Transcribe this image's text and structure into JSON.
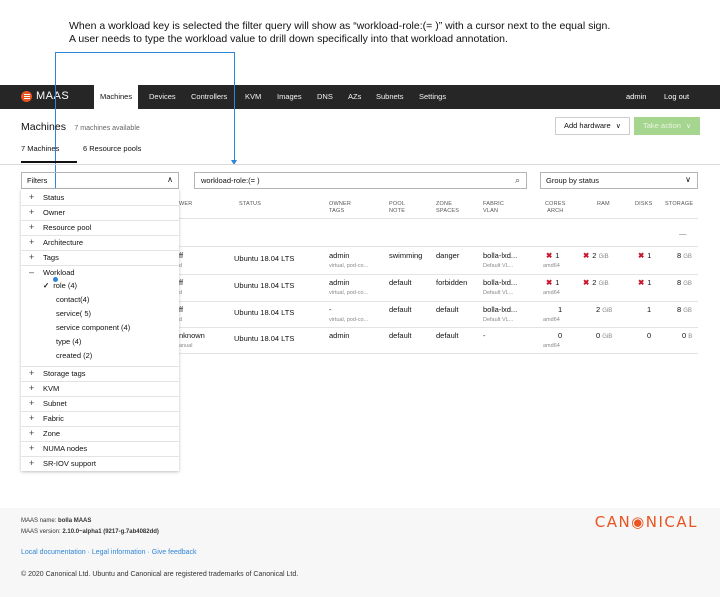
{
  "annotation": {
    "line1": "When a workload key is selected the filter query will show as “workload-role:(= )” with a cursor next to the equal sign.",
    "line2": "A user needs to type the workload value to drill down specifically into that workload annotation."
  },
  "navbar": {
    "logo": "MAAS",
    "items": [
      "Machines",
      "Devices",
      "Controllers",
      "KVM",
      "Images",
      "DNS",
      "AZs",
      "Subnets",
      "Settings"
    ],
    "active": "Machines",
    "user": "admin",
    "logout": "Log out"
  },
  "header": {
    "title": "Machines",
    "subtitle": "7 machines available",
    "add_hardware": "Add hardware",
    "take_action": "Take action"
  },
  "tabs": [
    "7 Machines",
    "6 Resource pools"
  ],
  "toolbar": {
    "filters_label": "Filters",
    "search_value": "workload-role:(= )",
    "group_by": "Group by status"
  },
  "table": {
    "headers": {
      "power": "WER",
      "status": "STATUS",
      "owner": [
        "OWNER",
        "TAGS"
      ],
      "pool": [
        "POOL",
        "NOTE"
      ],
      "zone": [
        "ZONE",
        "SPACES"
      ],
      "fabric": [
        "FABRIC",
        "VLAN"
      ],
      "cores": [
        "CORES",
        "ARCH"
      ],
      "ram": "RAM",
      "disks": "DISKS",
      "storage": "STORAGE"
    },
    "group_dash": "—",
    "rows": [
      {
        "power": "ff",
        "power_sub": "d",
        "status": "Ubuntu 18.04 LTS",
        "owner": "admin",
        "owner_sub": "virtual, pod-co...",
        "pool": "swimming",
        "zone": "danger",
        "fabric": "bolla-lxd...",
        "fabric_sub": "Default VL...",
        "cores": "1",
        "arch": "amd64",
        "cores_err": true,
        "ram": "2",
        "ram_unit": "GiB",
        "ram_err": true,
        "disks": "1",
        "disks_err": true,
        "storage": "8",
        "storage_unit": "GB"
      },
      {
        "power": "ff",
        "power_sub": "d",
        "status": "Ubuntu 18.04 LTS",
        "owner": "admin",
        "owner_sub": "virtual, pod-co...",
        "pool": "default",
        "zone": "forbidden",
        "fabric": "bolla-lxd...",
        "fabric_sub": "Default VL...",
        "cores": "1",
        "arch": "amd64",
        "cores_err": true,
        "ram": "2",
        "ram_unit": "GiB",
        "ram_err": true,
        "disks": "1",
        "disks_err": true,
        "storage": "8",
        "storage_unit": "GB"
      },
      {
        "power": "ff",
        "power_sub": "d",
        "status": "Ubuntu 18.04 LTS",
        "owner": "-",
        "owner_sub": "virtual, pod-co...",
        "pool": "default",
        "zone": "default",
        "fabric": "bolla-lxd...",
        "fabric_sub": "Default VL...",
        "cores": "1",
        "arch": "amd64",
        "cores_err": false,
        "ram": "2",
        "ram_unit": "GiB",
        "ram_err": false,
        "disks": "1",
        "disks_err": false,
        "storage": "8",
        "storage_unit": "GB"
      },
      {
        "power": "nknown",
        "power_sub": "anual",
        "status": "Ubuntu 18.04 LTS",
        "owner": "admin",
        "owner_sub": "",
        "pool": "default",
        "zone": "default",
        "fabric": "-",
        "fabric_sub": "",
        "cores": "0",
        "arch": "amd64",
        "cores_err": false,
        "ram": "0",
        "ram_unit": "GiB",
        "ram_err": false,
        "disks": "0",
        "disks_err": false,
        "storage": "0",
        "storage_unit": "B"
      }
    ]
  },
  "filter_menu": {
    "before": [
      "Status",
      "Owner",
      "Resource pool",
      "Architecture",
      "Tags"
    ],
    "open_group": "Workload",
    "selected": "role (4)",
    "workload_items": [
      "contact(4)",
      "service( 5)",
      "service component (4)",
      "type (4)",
      "created (2)"
    ],
    "after": [
      "Storage tags",
      "KVM",
      "Subnet",
      "Fabric",
      "Zone",
      "NUMA nodes",
      "SR-IOV support"
    ]
  },
  "footer": {
    "name_label": "MAAS name:",
    "name_value": "bolla MAAS",
    "version_label": "MAAS version:",
    "version_value": "2.10.0~alpha1 (9217-g.7ab4082dd)",
    "links": [
      "Local documentation",
      "Legal information",
      "Give feedback"
    ],
    "copyright": "© 2020 Canonical Ltd. Ubuntu and Canonical are registered trademarks of Canonical Ltd.",
    "brand": "CAN◉NICAL"
  },
  "colors": {
    "accent": "#e95420",
    "annotation_line": "#2f86d6",
    "positive": "#a6d58f",
    "error": "#c7162b",
    "nav_bg": "#262626"
  }
}
